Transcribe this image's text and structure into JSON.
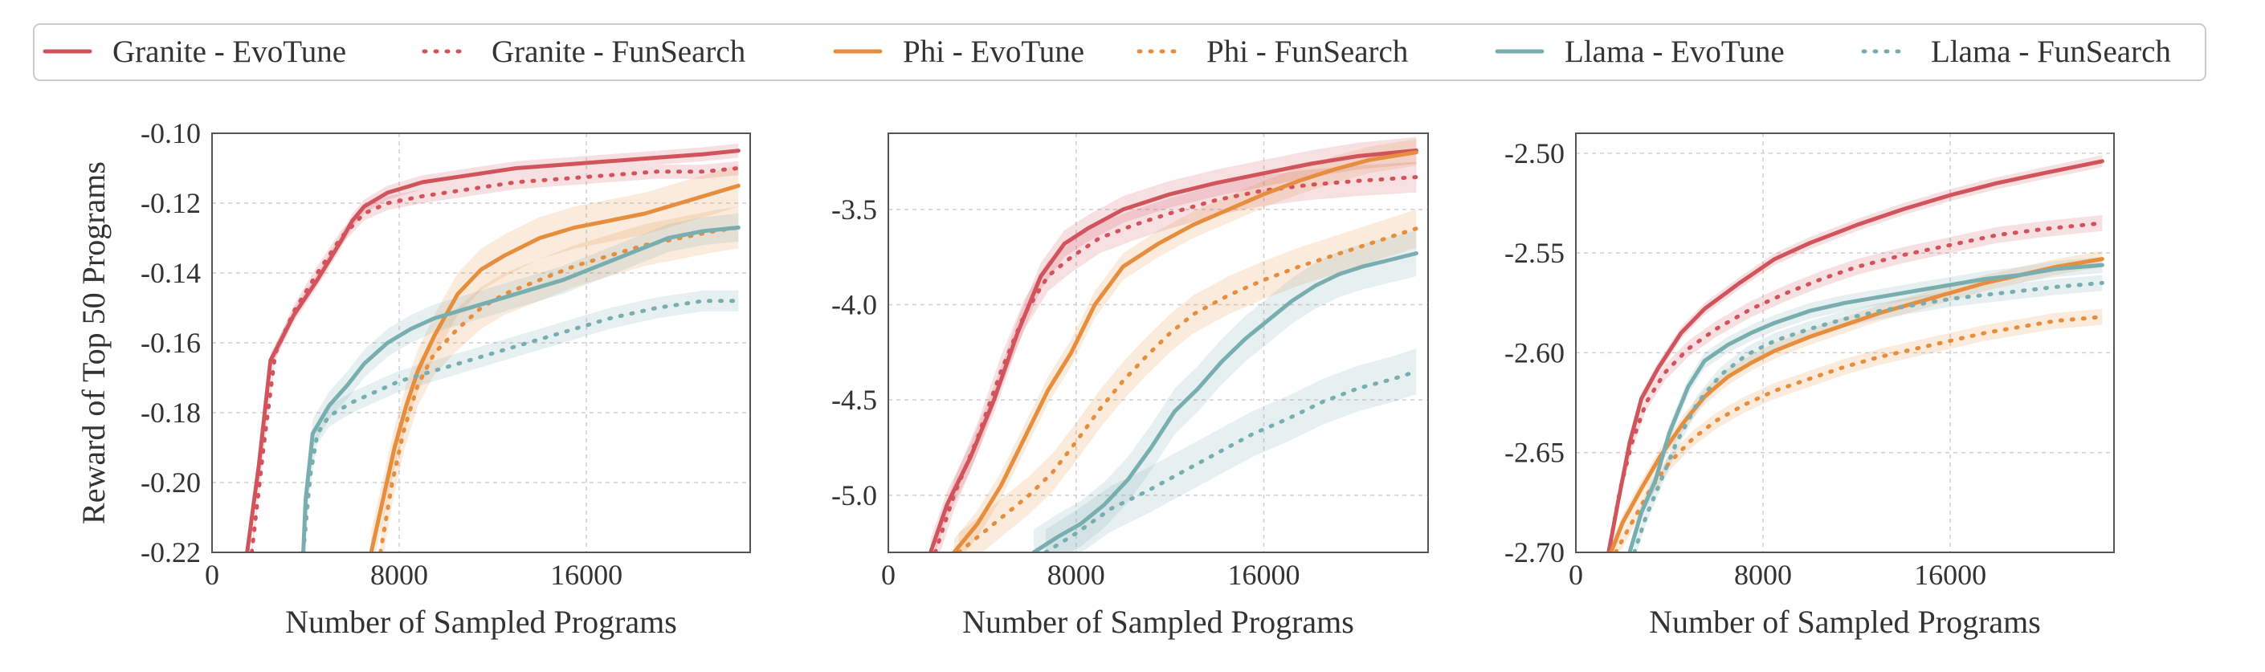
{
  "chart_data": {
    "type": "line",
    "legend": {
      "placement": "top",
      "entries": [
        {
          "label": "Granite - EvoTune",
          "color": "#d1545d",
          "style": "solid"
        },
        {
          "label": "Granite - FunSearch",
          "color": "#d1545d",
          "style": "dotted"
        },
        {
          "label": "Phi - EvoTune",
          "color": "#e68e3d",
          "style": "solid"
        },
        {
          "label": "Phi - FunSearch",
          "color": "#e68e3d",
          "style": "dotted"
        },
        {
          "label": "Llama - EvoTune",
          "color": "#79aeb0",
          "style": "solid"
        },
        {
          "label": "Llama - FunSearch",
          "color": "#79aeb0",
          "style": "dotted"
        }
      ]
    },
    "panels": [
      {
        "xlabel": "Number of Sampled Programs",
        "ylabel": "Reward of Top 50 Programs",
        "xlim": [
          0,
          23000
        ],
        "ylim": [
          -0.22,
          -0.1
        ],
        "xticks": [
          0,
          8000,
          16000
        ],
        "xtick_labels": [
          "0",
          "8000",
          "16000"
        ],
        "yticks": [
          -0.22,
          -0.2,
          -0.18,
          -0.16,
          -0.14,
          -0.12,
          -0.1
        ],
        "ytick_labels": [
          "-0.22",
          "-0.20",
          "-0.18",
          "-0.16",
          "-0.14",
          "-0.12",
          "-0.10"
        ],
        "grid": true,
        "series": [
          {
            "name": "Granite - EvoTune",
            "color": "#d1545d",
            "style": "solid",
            "x": [
              1500,
              2000,
              2500,
              3500,
              4500,
              5500,
              6000,
              6500,
              7500,
              9000,
              11000,
              13000,
              15000,
              17000,
              19000,
              21000,
              22500
            ],
            "y": [
              -0.22,
              -0.195,
              -0.165,
              -0.152,
              -0.142,
              -0.131,
              -0.125,
              -0.121,
              -0.117,
              -0.114,
              -0.112,
              -0.11,
              -0.109,
              -0.108,
              -0.107,
              -0.106,
              -0.105
            ],
            "band": 0.002
          },
          {
            "name": "Granite - FunSearch",
            "color": "#d1545d",
            "style": "dotted",
            "x": [
              1700,
              2200,
              2700,
              3500,
              4500,
              5500,
              6500,
              7500,
              9000,
              11000,
              13000,
              15000,
              17000,
              19000,
              21000,
              22500
            ],
            "y": [
              -0.22,
              -0.19,
              -0.163,
              -0.151,
              -0.14,
              -0.13,
              -0.123,
              -0.12,
              -0.118,
              -0.116,
              -0.114,
              -0.113,
              -0.112,
              -0.111,
              -0.111,
              -0.11
            ],
            "band": 0.002
          },
          {
            "name": "Phi - EvoTune",
            "color": "#e68e3d",
            "style": "solid",
            "x": [
              6800,
              7300,
              7800,
              8300,
              8800,
              9500,
              10500,
              11500,
              12500,
              14000,
              15500,
              17000,
              18500,
              20000,
              21500,
              22500
            ],
            "y": [
              -0.22,
              -0.205,
              -0.19,
              -0.178,
              -0.168,
              -0.158,
              -0.146,
              -0.139,
              -0.135,
              -0.13,
              -0.127,
              -0.125,
              -0.123,
              -0.12,
              -0.117,
              -0.115
            ],
            "band": 0.006
          },
          {
            "name": "Phi - FunSearch",
            "color": "#e68e3d",
            "style": "dotted",
            "x": [
              7200,
              7700,
              8200,
              8800,
              9500,
              10500,
              11500,
              12500,
              14000,
              15500,
              17000,
              18500,
              20000,
              21500,
              22500
            ],
            "y": [
              -0.22,
              -0.2,
              -0.185,
              -0.172,
              -0.163,
              -0.156,
              -0.15,
              -0.146,
              -0.142,
              -0.138,
              -0.135,
              -0.132,
              -0.13,
              -0.128,
              -0.127
            ],
            "band": 0.006
          },
          {
            "name": "Llama - EvoTune",
            "color": "#79aeb0",
            "style": "solid",
            "x": [
              3900,
              4000,
              4300,
              5000,
              5800,
              6500,
              7500,
              8500,
              9500,
              10500,
              12000,
              13500,
              15000,
              16500,
              18000,
              19500,
              21000,
              22500
            ],
            "y": [
              -0.22,
              -0.205,
              -0.186,
              -0.178,
              -0.172,
              -0.166,
              -0.16,
              -0.156,
              -0.153,
              -0.151,
              -0.148,
              -0.145,
              -0.142,
              -0.138,
              -0.134,
              -0.13,
              -0.128,
              -0.127
            ],
            "band": 0.004
          },
          {
            "name": "Llama - FunSearch",
            "color": "#79aeb0",
            "style": "dotted",
            "x": [
              3900,
              4200,
              4500,
              5000,
              6000,
              7000,
              8000,
              9500,
              11000,
              13000,
              15000,
              17000,
              19000,
              21000,
              22500
            ],
            "y": [
              -0.22,
              -0.198,
              -0.186,
              -0.181,
              -0.177,
              -0.174,
              -0.171,
              -0.168,
              -0.165,
              -0.161,
              -0.157,
              -0.153,
              -0.15,
              -0.148,
              -0.148
            ],
            "band": 0.003
          }
        ]
      },
      {
        "xlabel": "Number of Sampled Programs",
        "ylabel": "",
        "xlim": [
          0,
          23000
        ],
        "ylim": [
          -5.3,
          -3.1
        ],
        "xticks": [
          0,
          8000,
          16000
        ],
        "xtick_labels": [
          "0",
          "8000",
          "16000"
        ],
        "yticks": [
          -5.0,
          -4.5,
          -4.0,
          -3.5
        ],
        "ytick_labels": [
          "-5.0",
          "-4.5",
          "-4.0",
          "-3.5"
        ],
        "grid": true,
        "series": [
          {
            "name": "Granite - EvoTune",
            "color": "#d1545d",
            "style": "solid",
            "x": [
              1800,
              2500,
              3500,
              4500,
              5500,
              6500,
              7500,
              8500,
              10000,
              12000,
              14000,
              16000,
              18000,
              20000,
              22500
            ],
            "y": [
              -5.3,
              -5.05,
              -4.8,
              -4.5,
              -4.15,
              -3.85,
              -3.68,
              -3.6,
              -3.5,
              -3.42,
              -3.36,
              -3.31,
              -3.26,
              -3.22,
              -3.19
            ],
            "band": 0.07
          },
          {
            "name": "Granite - FunSearch",
            "color": "#d1545d",
            "style": "dotted",
            "x": [
              2000,
              2800,
              3800,
              4800,
              5800,
              6800,
              7800,
              9000,
              10500,
              12000,
              14000,
              16000,
              18000,
              20000,
              22500
            ],
            "y": [
              -5.3,
              -5.0,
              -4.7,
              -4.35,
              -4.05,
              -3.85,
              -3.75,
              -3.65,
              -3.58,
              -3.52,
              -3.45,
              -3.4,
              -3.37,
              -3.35,
              -3.33
            ],
            "band": 0.08
          },
          {
            "name": "Phi - EvoTune",
            "color": "#e68e3d",
            "style": "solid",
            "x": [
              2800,
              3800,
              4800,
              5800,
              6800,
              7800,
              8800,
              10000,
              11500,
              13000,
              14500,
              16000,
              17500,
              19000,
              20500,
              22500
            ],
            "y": [
              -5.3,
              -5.15,
              -4.95,
              -4.7,
              -4.45,
              -4.25,
              -4.0,
              -3.8,
              -3.68,
              -3.58,
              -3.5,
              -3.42,
              -3.35,
              -3.29,
              -3.24,
              -3.2
            ],
            "band": 0.07
          },
          {
            "name": "Phi - FunSearch",
            "color": "#e68e3d",
            "style": "dotted",
            "x": [
              3000,
              4000,
              5000,
              6000,
              7000,
              8000,
              9000,
              10000,
              11000,
              12000,
              13000,
              14500,
              16000,
              17500,
              19000,
              20500,
              22500
            ],
            "y": [
              -5.3,
              -5.2,
              -5.1,
              -5.0,
              -4.88,
              -4.72,
              -4.55,
              -4.4,
              -4.27,
              -4.15,
              -4.05,
              -3.95,
              -3.87,
              -3.8,
              -3.74,
              -3.68,
              -3.6
            ],
            "band": 0.1
          },
          {
            "name": "Llama - EvoTune",
            "color": "#79aeb0",
            "style": "solid",
            "x": [
              6200,
              7200,
              8200,
              9200,
              10200,
              11200,
              12200,
              13200,
              14200,
              15200,
              16200,
              17200,
              18200,
              19200,
              20200,
              21200,
              22500
            ],
            "y": [
              -5.3,
              -5.22,
              -5.15,
              -5.05,
              -4.92,
              -4.75,
              -4.56,
              -4.44,
              -4.3,
              -4.18,
              -4.08,
              -3.98,
              -3.9,
              -3.84,
              -3.8,
              -3.77,
              -3.73
            ],
            "band": 0.12
          },
          {
            "name": "Llama - FunSearch",
            "color": "#79aeb0",
            "style": "dotted",
            "x": [
              6700,
              8000,
              9500,
              11000,
              12500,
              14000,
              15500,
              17000,
              18500,
              20000,
              21500,
              22500
            ],
            "y": [
              -5.3,
              -5.2,
              -5.07,
              -4.98,
              -4.88,
              -4.78,
              -4.68,
              -4.6,
              -4.51,
              -4.44,
              -4.39,
              -4.35
            ],
            "band": 0.12
          }
        ]
      },
      {
        "xlabel": "Number of Sampled Programs",
        "ylabel": "",
        "xlim": [
          0,
          23000
        ],
        "ylim": [
          -2.7,
          -2.49
        ],
        "xticks": [
          0,
          8000,
          16000
        ],
        "xtick_labels": [
          "0",
          "8000",
          "16000"
        ],
        "yticks": [
          -2.7,
          -2.65,
          -2.6,
          -2.55,
          -2.5
        ],
        "ytick_labels": [
          "-2.70",
          "-2.65",
          "-2.60",
          "-2.55",
          "-2.50"
        ],
        "grid": true,
        "series": [
          {
            "name": "Granite - EvoTune",
            "color": "#d1545d",
            "style": "solid",
            "x": [
              1400,
              1800,
              2300,
              2800,
              3500,
              4500,
              5500,
              7000,
              8500,
              10000,
              12000,
              14000,
              16000,
              18000,
              20000,
              22500
            ],
            "y": [
              -2.7,
              -2.675,
              -2.645,
              -2.623,
              -2.608,
              -2.59,
              -2.578,
              -2.565,
              -2.553,
              -2.545,
              -2.536,
              -2.528,
              -2.521,
              -2.515,
              -2.51,
              -2.504
            ],
            "band": 0.003
          },
          {
            "name": "Granite - FunSearch",
            "color": "#d1545d",
            "style": "dotted",
            "x": [
              1400,
              1900,
              2400,
              3000,
              3800,
              4800,
              6000,
              7500,
              9000,
              10500,
              12000,
              14000,
              16000,
              18000,
              20000,
              22500
            ],
            "y": [
              -2.7,
              -2.668,
              -2.645,
              -2.625,
              -2.61,
              -2.598,
              -2.588,
              -2.578,
              -2.57,
              -2.563,
              -2.557,
              -2.551,
              -2.546,
              -2.541,
              -2.538,
              -2.535
            ],
            "band": 0.004
          },
          {
            "name": "Phi - EvoTune",
            "color": "#e68e3d",
            "style": "solid",
            "x": [
              1500,
              2000,
              2800,
              3600,
              4600,
              5500,
              6500,
              7500,
              8500,
              10000,
              11500,
              13000,
              14500,
              16000,
              17500,
              19000,
              20500,
              22500
            ],
            "y": [
              -2.7,
              -2.685,
              -2.668,
              -2.652,
              -2.635,
              -2.622,
              -2.612,
              -2.605,
              -2.599,
              -2.592,
              -2.586,
              -2.58,
              -2.575,
              -2.57,
              -2.565,
              -2.561,
              -2.557,
              -2.553
            ],
            "band": 0.004
          },
          {
            "name": "Phi - FunSearch",
            "color": "#e68e3d",
            "style": "dotted",
            "x": [
              1700,
              2400,
              3200,
              4000,
              5000,
              6000,
              7200,
              8500,
              10000,
              11500,
              13000,
              14500,
              16000,
              17500,
              19000,
              20500,
              22500
            ],
            "y": [
              -2.7,
              -2.685,
              -2.668,
              -2.655,
              -2.643,
              -2.634,
              -2.626,
              -2.619,
              -2.613,
              -2.607,
              -2.602,
              -2.598,
              -2.594,
              -2.59,
              -2.587,
              -2.584,
              -2.582
            ],
            "band": 0.004
          },
          {
            "name": "Llama - EvoTune",
            "color": "#79aeb0",
            "style": "solid",
            "x": [
              2300,
              2800,
              3400,
              4000,
              4800,
              5500,
              6500,
              7500,
              8500,
              10000,
              11500,
              13000,
              14500,
              16000,
              17500,
              19000,
              20500,
              22500
            ],
            "y": [
              -2.7,
              -2.68,
              -2.664,
              -2.64,
              -2.617,
              -2.604,
              -2.596,
              -2.59,
              -2.585,
              -2.579,
              -2.575,
              -2.572,
              -2.569,
              -2.566,
              -2.563,
              -2.561,
              -2.558,
              -2.556
            ],
            "band": 0.004
          },
          {
            "name": "Llama - FunSearch",
            "color": "#79aeb0",
            "style": "dotted",
            "x": [
              2500,
              3000,
              3600,
              4300,
              5200,
              6200,
              7300,
              8500,
              10000,
              11500,
              13000,
              14500,
              16000,
              17500,
              19000,
              20500,
              22500
            ],
            "y": [
              -2.7,
              -2.682,
              -2.665,
              -2.645,
              -2.625,
              -2.611,
              -2.601,
              -2.594,
              -2.588,
              -2.583,
              -2.579,
              -2.576,
              -2.573,
              -2.571,
              -2.569,
              -2.567,
              -2.565
            ],
            "band": 0.004
          }
        ]
      }
    ]
  }
}
